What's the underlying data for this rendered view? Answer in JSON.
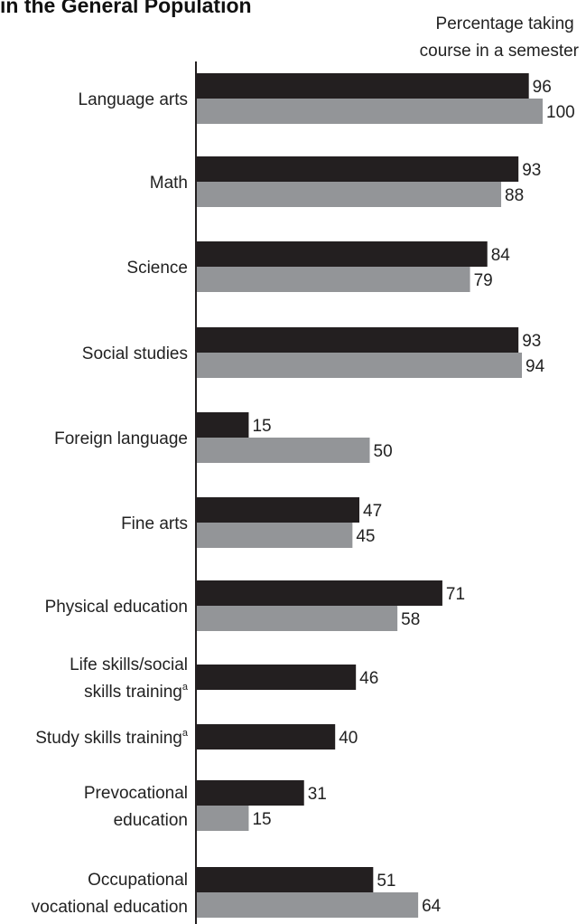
{
  "chart_data": {
    "type": "bar",
    "orientation": "horizontal",
    "title": "in the General Population",
    "value_axis_label": "Percentage taking course in a semester",
    "value_axis_label_lines": [
      "Percentage taking",
      "course in a semester"
    ],
    "xlim": [
      0,
      100
    ],
    "grid": false,
    "legend": "none",
    "categories": [
      {
        "lines": [
          "Language arts"
        ],
        "superscript": ""
      },
      {
        "lines": [
          "Math"
        ],
        "superscript": ""
      },
      {
        "lines": [
          "Science"
        ],
        "superscript": ""
      },
      {
        "lines": [
          "Social studies"
        ],
        "superscript": ""
      },
      {
        "lines": [
          "Foreign language"
        ],
        "superscript": ""
      },
      {
        "lines": [
          "Fine arts"
        ],
        "superscript": ""
      },
      {
        "lines": [
          "Physical education"
        ],
        "superscript": ""
      },
      {
        "lines": [
          "Life skills/social",
          "skills training"
        ],
        "superscript": "a"
      },
      {
        "lines": [
          "Study skills training"
        ],
        "superscript": "a"
      },
      {
        "lines": [
          "Prevocational",
          "education"
        ],
        "superscript": ""
      },
      {
        "lines": [
          "Occupational",
          "vocational education"
        ],
        "superscript": ""
      }
    ],
    "series": [
      {
        "color": "#231f20",
        "values": [
          96,
          93,
          84,
          93,
          15,
          47,
          71,
          46,
          40,
          31,
          51
        ]
      },
      {
        "color": "#939598",
        "values": [
          100,
          88,
          79,
          94,
          50,
          45,
          58,
          null,
          null,
          15,
          64
        ]
      }
    ]
  }
}
